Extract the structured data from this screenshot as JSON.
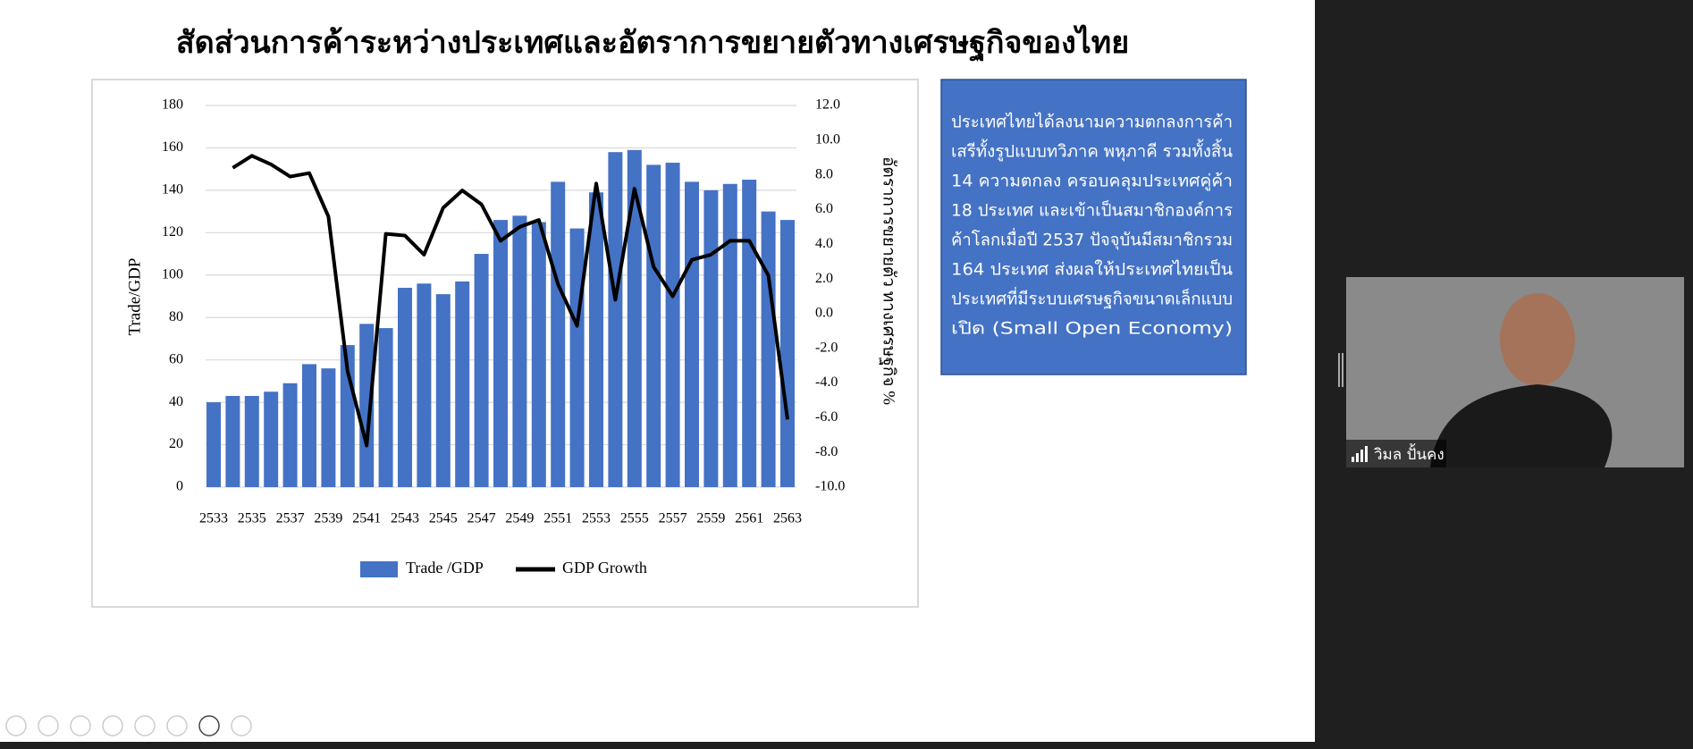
{
  "chart_data": {
    "type": "bar",
    "title": "สัดส่วนการค้าระหว่างประเทศและอัตราการขยายตัวทางเศรษฐกิจของไทย",
    "ylabel": "Trade/GDP",
    "y2label": "อัตราการขยายตัว ทางเศรษฐกิจ %",
    "categories": [
      "2533",
      null,
      "2535",
      null,
      "2537",
      null,
      "2539",
      null,
      "2541",
      null,
      "2543",
      null,
      "2545",
      null,
      "2547",
      null,
      "2549",
      null,
      "2551",
      null,
      "2553",
      null,
      "2555",
      null,
      "2557",
      null,
      "2559",
      null,
      "2561",
      null,
      "2563"
    ],
    "series": [
      {
        "name": "Trade /GDP",
        "type": "bar",
        "color": "#4472c4",
        "values": [
          40,
          43,
          43,
          45,
          49,
          58,
          56,
          67,
          77,
          75,
          94,
          96,
          91,
          97,
          110,
          126,
          128,
          125,
          144,
          122,
          139,
          158,
          159,
          152,
          153,
          144,
          140,
          143,
          145,
          130,
          126
        ]
      },
      {
        "name": "GDP Growth",
        "type": "line",
        "axis": "y2",
        "color": "#000000",
        "values": [
          null,
          8.4,
          9.1,
          8.6,
          7.9,
          8.1,
          5.6,
          -3.3,
          -7.6,
          4.6,
          4.5,
          3.4,
          6.1,
          7.1,
          6.3,
          4.2,
          5.0,
          5.4,
          1.7,
          -0.7,
          7.5,
          0.8,
          7.2,
          2.7,
          1.0,
          3.1,
          3.4,
          4.2,
          4.2,
          2.2,
          -6.1
        ]
      }
    ],
    "ylim": [
      0,
      180
    ],
    "yticks": [
      0,
      20,
      40,
      60,
      80,
      100,
      120,
      140,
      160,
      180
    ],
    "y2lim": [
      -10,
      12
    ],
    "y2ticks": [
      {
        "value": -10,
        "label": "-10.0"
      },
      {
        "value": -8,
        "label": "-8.0"
      },
      {
        "value": -6,
        "label": "-6.0"
      },
      {
        "value": -4,
        "label": "-4.0"
      },
      {
        "value": -2,
        "label": "-2.0"
      },
      {
        "value": 0,
        "label": "0.0"
      },
      {
        "value": 2,
        "label": "2.0"
      },
      {
        "value": 4,
        "label": "4.0"
      },
      {
        "value": 6,
        "label": "6.0"
      },
      {
        "value": 8,
        "label": "8.0"
      },
      {
        "value": 10,
        "label": "10.0"
      },
      {
        "value": 12,
        "label": "12.0"
      }
    ],
    "grid": true,
    "legend": "bottom"
  },
  "text_box": {
    "lines": [
      "ประเทศไทยได้ลงนามความตกลงการค้า",
      "เสรีทั้งรูปแบบทวิภาค พหุภาคี รวมทั้งสิ้น",
      "14 ความตกลง  ครอบคลุมประเทศคู่ค้า",
      "18 ประเทศ และเข้าเป็นสมาชิกองค์การ",
      "ค้าโลกเมื่อปี 2537 ปัจจุบันมีสมาชิกรวม",
      "164 ประเทศ ส่งผลให้ประเทศไทยเป็น",
      "ประเทศที่มีระบบเศรษฐกิจขนาดเล็กแบบ",
      "เปิด  (Small Open Economy)"
    ]
  },
  "video": {
    "name": "วิมล ปั้นคง"
  }
}
